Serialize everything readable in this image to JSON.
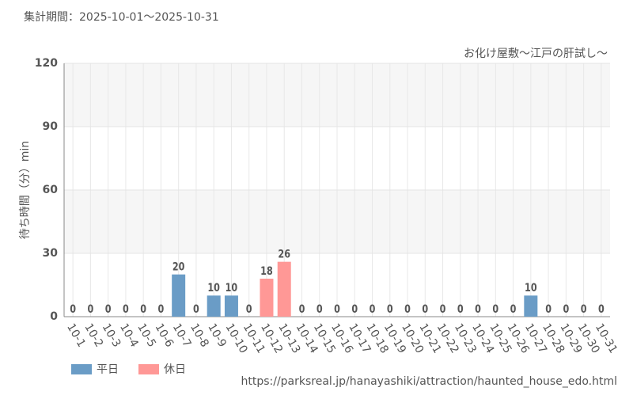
{
  "chart_data": {
    "type": "bar",
    "title": "集計期間：2025-10-01～2025-10-31",
    "subtitle": "お化け屋敷～江戸の肝試し～",
    "y_label": "待ち時間（分）min",
    "source": "https://parksreal.jp/hanayashiki/attraction/haunted_house_edo.html",
    "categories": [
      "10-1",
      "10-2",
      "10-3",
      "10-4",
      "10-5",
      "10-6",
      "10-7",
      "10-8",
      "10-9",
      "10-10",
      "10-11",
      "10-12",
      "10-13",
      "10-14",
      "10-15",
      "10-16",
      "10-17",
      "10-18",
      "10-19",
      "10-20",
      "10-21",
      "10-22",
      "10-23",
      "10-24",
      "10-25",
      "10-26",
      "10-27",
      "10-28",
      "10-29",
      "10-30",
      "10-31"
    ],
    "series": [
      {
        "name": "平日",
        "color": "#6a9cc6",
        "values": [
          0,
          0,
          0,
          null,
          null,
          0,
          20,
          0,
          10,
          10,
          null,
          null,
          null,
          0,
          0,
          0,
          0,
          null,
          null,
          0,
          0,
          0,
          0,
          0,
          null,
          null,
          10,
          0,
          0,
          0,
          0
        ]
      },
      {
        "name": "休日",
        "color": "#ff9896",
        "values": [
          null,
          null,
          null,
          0,
          0,
          null,
          null,
          null,
          null,
          null,
          0,
          18,
          26,
          null,
          null,
          null,
          null,
          0,
          0,
          null,
          null,
          null,
          null,
          null,
          0,
          0,
          null,
          null,
          null,
          null,
          null
        ]
      }
    ],
    "ylim": [
      0,
      120
    ],
    "yticks": [
      0,
      30,
      60,
      90,
      120
    ],
    "grid": true
  }
}
